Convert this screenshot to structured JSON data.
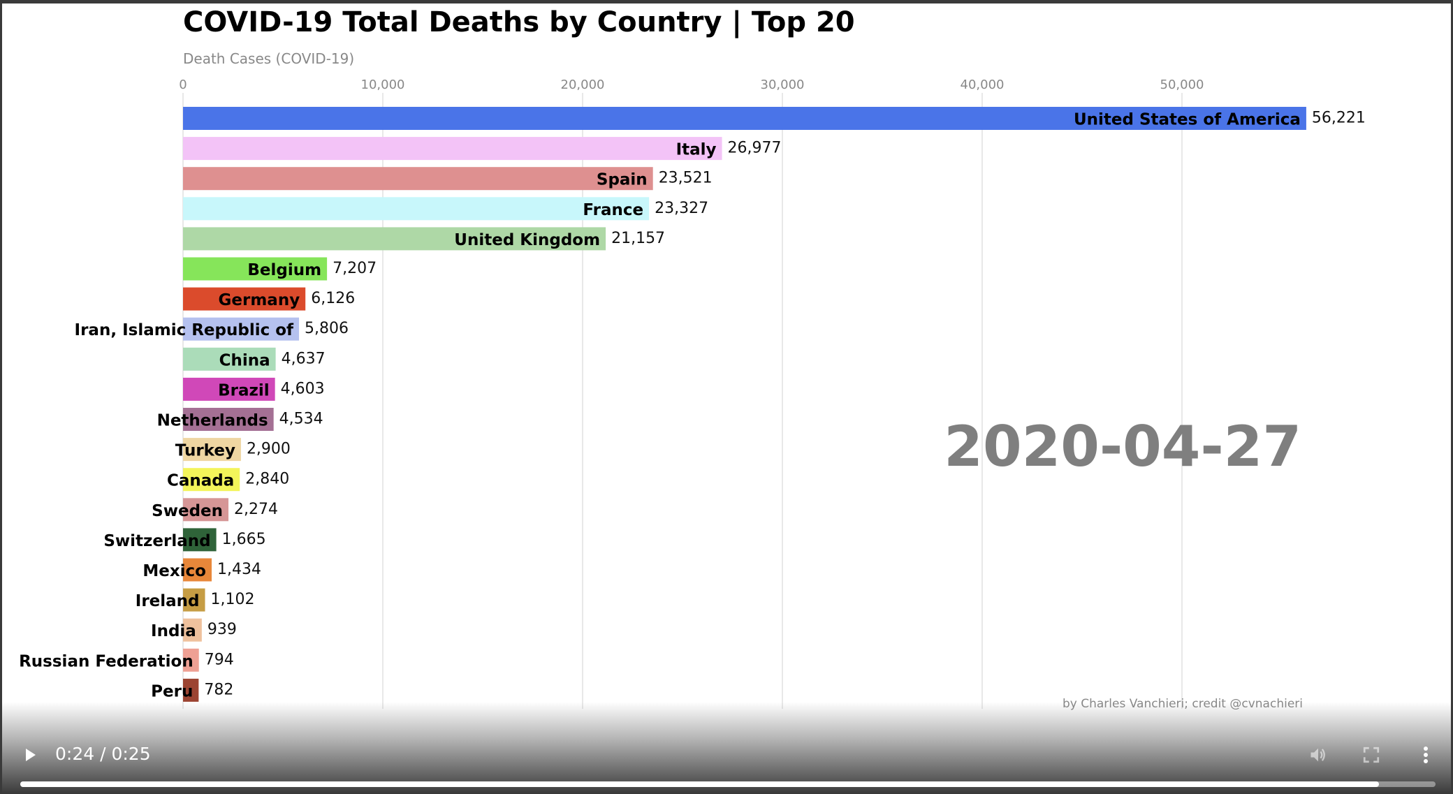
{
  "chart_data": {
    "type": "bar",
    "orientation": "horizontal",
    "title": "COVID-19 Total Deaths by Country | Top 20",
    "subtitle": "Death Cases (COVID-19)",
    "date": "2020-04-27",
    "credit": "by Charles Vanchieri; credit @cvnachieri",
    "xlim": [
      0,
      60000
    ],
    "ticks": [
      0,
      10000,
      20000,
      30000,
      40000,
      50000
    ],
    "tick_labels": [
      "0",
      "10,000",
      "20,000",
      "30,000",
      "40,000",
      "50,000"
    ],
    "grid": true,
    "categories": [
      "United States of America",
      "Italy",
      "Spain",
      "France",
      "United Kingdom",
      "Belgium",
      "Germany",
      "Iran, Islamic Republic of",
      "China",
      "Brazil",
      "Netherlands",
      "Turkey",
      "Canada",
      "Sweden",
      "Switzerland",
      "Mexico",
      "Ireland",
      "India",
      "Russian Federation",
      "Peru"
    ],
    "values": [
      56221,
      26977,
      23521,
      23327,
      21157,
      7207,
      6126,
      5806,
      4637,
      4603,
      4534,
      2900,
      2840,
      2274,
      1665,
      1434,
      1102,
      939,
      794,
      782
    ],
    "value_labels": [
      "56,221",
      "26,977",
      "23,521",
      "23,327",
      "21,157",
      "7,207",
      "6,126",
      "5,806",
      "4,637",
      "4,603",
      "4,534",
      "2,900",
      "2,840",
      "2,274",
      "1,665",
      "1,434",
      "1,102",
      "939",
      "794",
      "782"
    ],
    "colors": [
      "#4a74e8",
      "#f3c3f7",
      "#de9090",
      "#c8f7fb",
      "#aed8a6",
      "#86e55a",
      "#db4b2c",
      "#b5c1ef",
      "#abdcb9",
      "#d048b8",
      "#a47094",
      "#efd6a2",
      "#f3f45a",
      "#d69696",
      "#2f6339",
      "#e8873a",
      "#c69d44",
      "#efc19d",
      "#eea094",
      "#9c4432"
    ]
  },
  "video": {
    "time_current": "0:24",
    "time_sep": " / ",
    "time_total": "0:25",
    "progress": 0.96,
    "play_icon": "play-icon",
    "mute_icon": "volume-icon",
    "fullscreen_icon": "fullscreen-icon",
    "more_icon": "more-vertical-icon"
  }
}
